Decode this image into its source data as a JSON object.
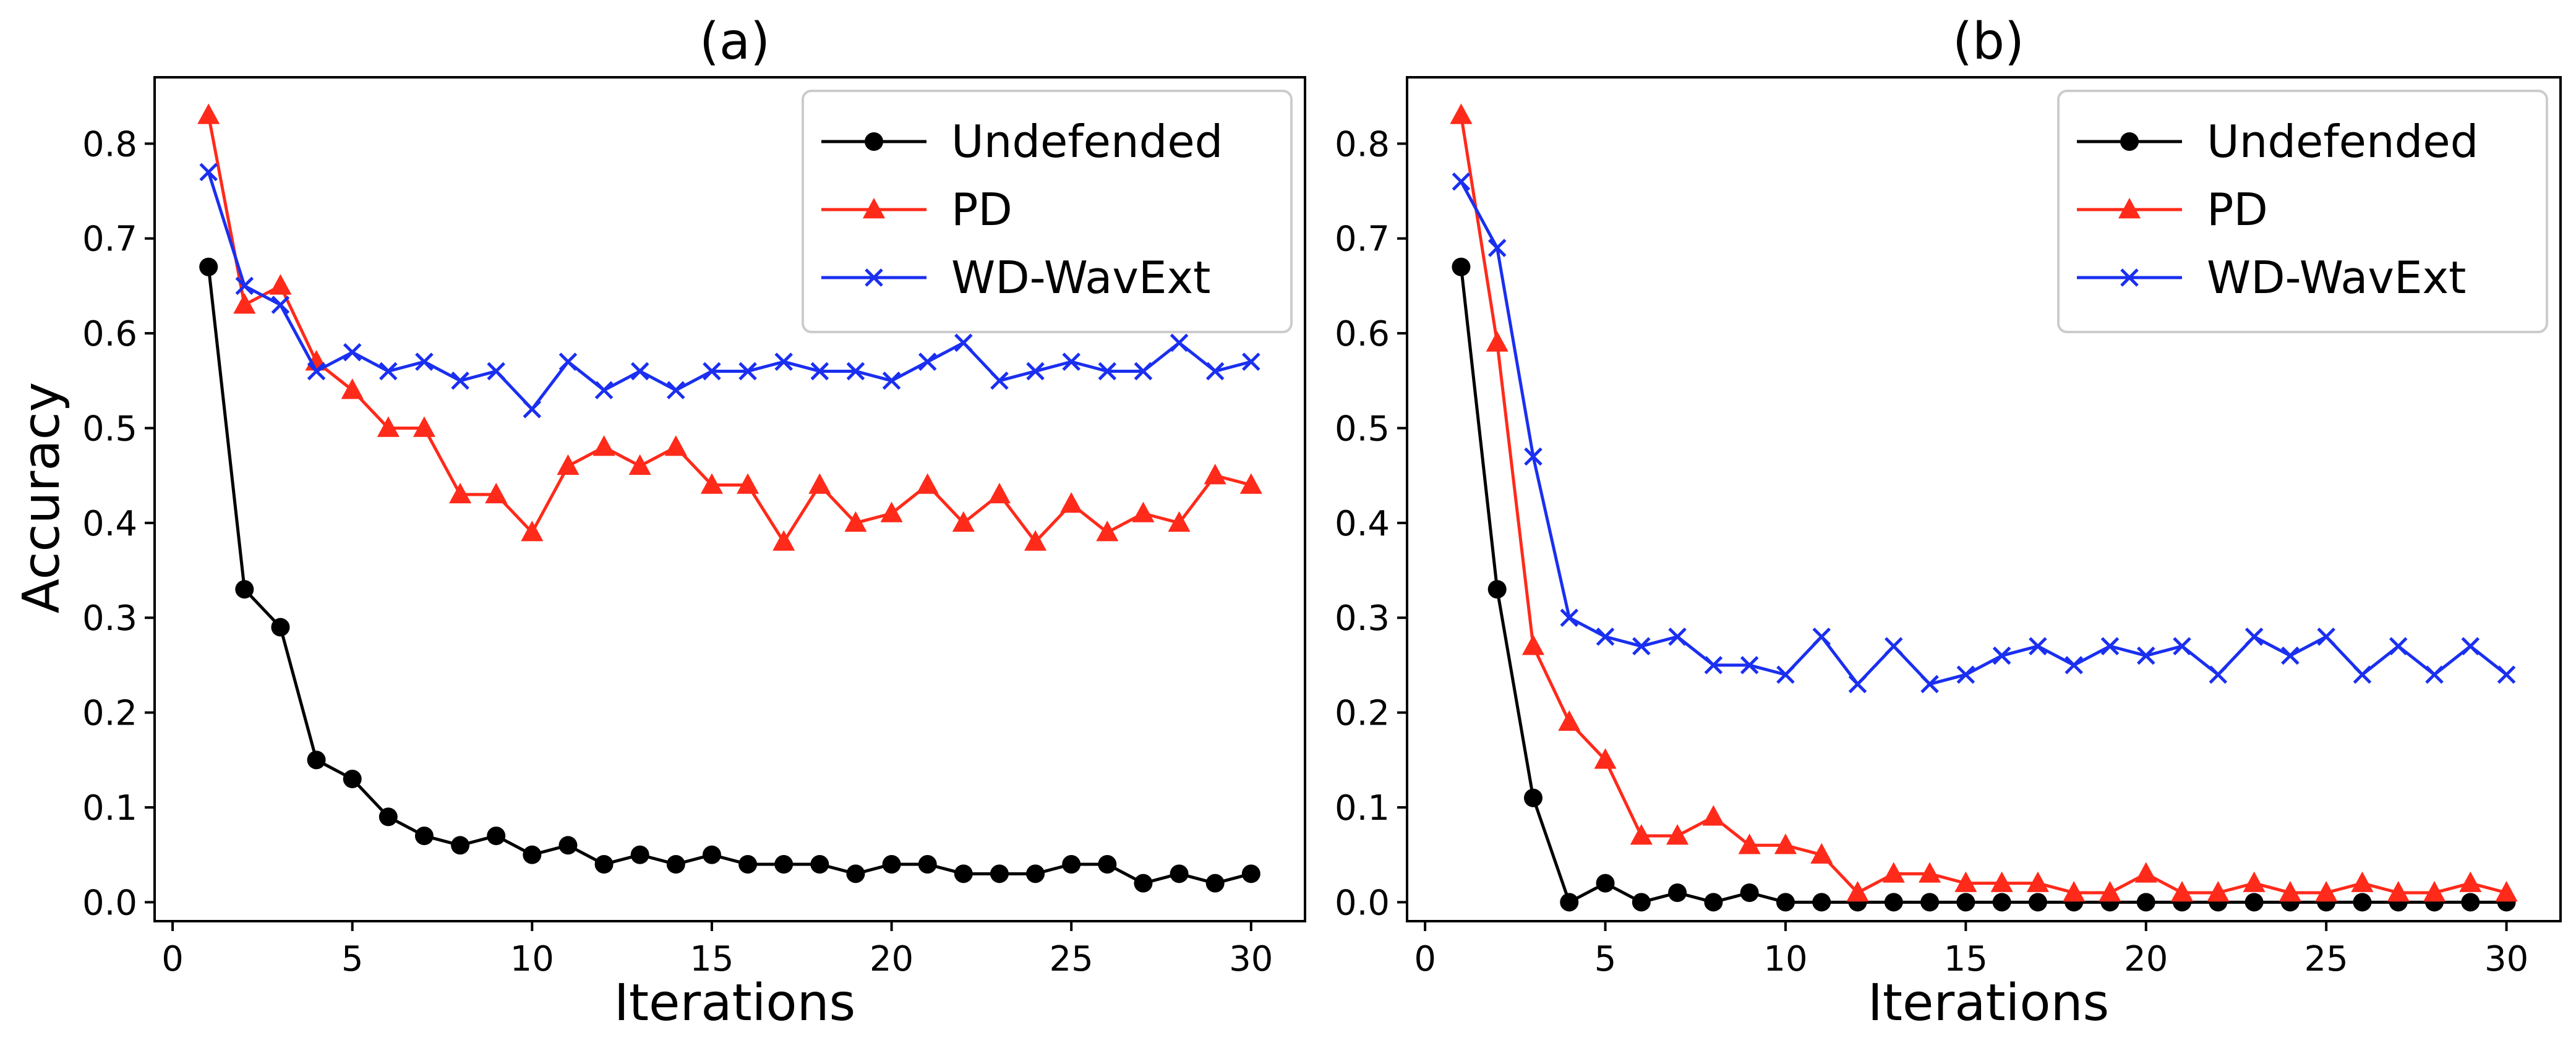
{
  "figure": {
    "ylabel": "Accuracy"
  },
  "chart_data": [
    {
      "type": "line",
      "title": "(a)",
      "xlabel": "Iterations",
      "ylabel": "Accuracy",
      "xlim": [
        -0.5,
        31.5
      ],
      "ylim": [
        -0.02,
        0.87
      ],
      "xticks": [
        0,
        5,
        10,
        15,
        20,
        25,
        30
      ],
      "xtick_labels": [
        "0",
        "5",
        "10",
        "15",
        "20",
        "25",
        "30"
      ],
      "yticks": [
        0.0,
        0.1,
        0.2,
        0.3,
        0.4,
        0.5,
        0.6,
        0.7,
        0.8
      ],
      "ytick_labels": [
        "0.0",
        "0.1",
        "0.2",
        "0.3",
        "0.4",
        "0.5",
        "0.6",
        "0.7",
        "0.8"
      ],
      "legend_position": "top-right",
      "x": [
        1,
        2,
        3,
        4,
        5,
        6,
        7,
        8,
        9,
        10,
        11,
        12,
        13,
        14,
        15,
        16,
        17,
        18,
        19,
        20,
        21,
        22,
        23,
        24,
        25,
        26,
        27,
        28,
        29,
        30
      ],
      "series": [
        {
          "name": "Undefended",
          "color": "#000000",
          "marker": "circle",
          "values": [
            0.67,
            0.33,
            0.29,
            0.15,
            0.13,
            0.09,
            0.07,
            0.06,
            0.07,
            0.05,
            0.06,
            0.04,
            0.05,
            0.04,
            0.05,
            0.04,
            0.04,
            0.04,
            0.03,
            0.04,
            0.04,
            0.03,
            0.03,
            0.03,
            0.04,
            0.04,
            0.02,
            0.03,
            0.02,
            0.03
          ]
        },
        {
          "name": "PD",
          "color": "#ff2a1a",
          "marker": "triangle",
          "values": [
            0.83,
            0.63,
            0.65,
            0.57,
            0.54,
            0.5,
            0.5,
            0.43,
            0.43,
            0.39,
            0.46,
            0.48,
            0.46,
            0.48,
            0.44,
            0.44,
            0.38,
            0.44,
            0.4,
            0.41,
            0.44,
            0.4,
            0.43,
            0.38,
            0.42,
            0.39,
            0.41,
            0.4,
            0.45,
            0.44
          ]
        },
        {
          "name": "WD-WavExt",
          "color": "#1a2ff0",
          "marker": "x",
          "values": [
            0.77,
            0.65,
            0.63,
            0.56,
            0.58,
            0.56,
            0.57,
            0.55,
            0.56,
            0.52,
            0.57,
            0.54,
            0.56,
            0.54,
            0.56,
            0.56,
            0.57,
            0.56,
            0.56,
            0.55,
            0.57,
            0.59,
            0.55,
            0.56,
            0.57,
            0.56,
            0.56,
            0.59,
            0.56,
            0.57
          ]
        }
      ]
    },
    {
      "type": "line",
      "title": "(b)",
      "xlabel": "Iterations",
      "ylabel": "",
      "xlim": [
        -0.5,
        31.5
      ],
      "ylim": [
        -0.02,
        0.87
      ],
      "xticks": [
        0,
        5,
        10,
        15,
        20,
        25,
        30
      ],
      "xtick_labels": [
        "0",
        "5",
        "10",
        "15",
        "20",
        "25",
        "30"
      ],
      "yticks": [
        0.0,
        0.1,
        0.2,
        0.3,
        0.4,
        0.5,
        0.6,
        0.7,
        0.8
      ],
      "ytick_labels": [
        "0.0",
        "0.1",
        "0.2",
        "0.3",
        "0.4",
        "0.5",
        "0.6",
        "0.7",
        "0.8"
      ],
      "legend_position": "top-right",
      "x": [
        1,
        2,
        3,
        4,
        5,
        6,
        7,
        8,
        9,
        10,
        11,
        12,
        13,
        14,
        15,
        16,
        17,
        18,
        19,
        20,
        21,
        22,
        23,
        24,
        25,
        26,
        27,
        28,
        29,
        30
      ],
      "series": [
        {
          "name": "Undefended",
          "color": "#000000",
          "marker": "circle",
          "values": [
            0.67,
            0.33,
            0.11,
            0.0,
            0.02,
            0.0,
            0.01,
            0.0,
            0.01,
            0.0,
            0.0,
            0.0,
            0.0,
            0.0,
            0.0,
            0.0,
            0.0,
            0.0,
            0.0,
            0.0,
            0.0,
            0.0,
            0.0,
            0.0,
            0.0,
            0.0,
            0.0,
            0.0,
            0.0,
            0.0
          ]
        },
        {
          "name": "PD",
          "color": "#ff2a1a",
          "marker": "triangle",
          "values": [
            0.83,
            0.59,
            0.27,
            0.19,
            0.15,
            0.07,
            0.07,
            0.09,
            0.06,
            0.06,
            0.05,
            0.01,
            0.03,
            0.03,
            0.02,
            0.02,
            0.02,
            0.01,
            0.01,
            0.03,
            0.01,
            0.01,
            0.02,
            0.01,
            0.01,
            0.02,
            0.01,
            0.01,
            0.02,
            0.01
          ]
        },
        {
          "name": "WD-WavExt",
          "color": "#1a2ff0",
          "marker": "x",
          "values": [
            0.76,
            0.69,
            0.47,
            0.3,
            0.28,
            0.27,
            0.28,
            0.25,
            0.25,
            0.24,
            0.28,
            0.23,
            0.27,
            0.23,
            0.24,
            0.26,
            0.27,
            0.25,
            0.27,
            0.26,
            0.27,
            0.24,
            0.28,
            0.26,
            0.28,
            0.24,
            0.27,
            0.24,
            0.27,
            0.24
          ]
        }
      ]
    }
  ]
}
